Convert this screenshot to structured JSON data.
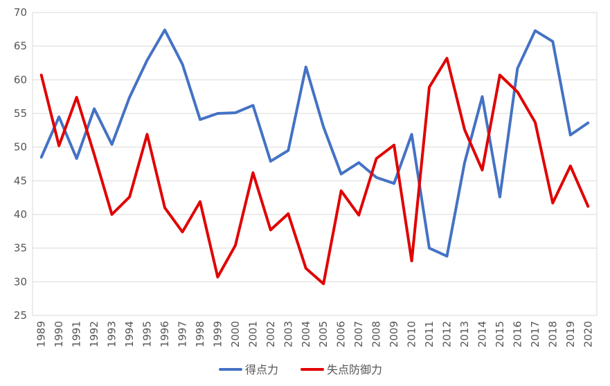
{
  "chart_data": {
    "type": "line",
    "title": "",
    "xlabel": "",
    "ylabel": "",
    "ylim": [
      25,
      70
    ],
    "yticks": [
      25,
      30,
      35,
      40,
      45,
      50,
      55,
      60,
      65,
      70
    ],
    "grid": true,
    "legend_position": "bottom",
    "x": [
      "1989",
      "1990",
      "1991",
      "1992",
      "1993",
      "1994",
      "1995",
      "1996",
      "1997",
      "1998",
      "1999",
      "2000",
      "2001",
      "2002",
      "2003",
      "2004",
      "2005",
      "2006",
      "2007",
      "2008",
      "2009",
      "2010",
      "2011",
      "2012",
      "2013",
      "2014",
      "2015",
      "2016",
      "2017",
      "2018",
      "2019",
      "2020"
    ],
    "series": [
      {
        "name": "得点力",
        "color": "#4472C4",
        "values": [
          48.5,
          54.5,
          48.3,
          55.7,
          50.4,
          57.4,
          62.9,
          67.4,
          62.3,
          54.1,
          55.0,
          55.1,
          56.2,
          47.9,
          49.5,
          61.9,
          53.0,
          46.0,
          47.7,
          45.5,
          44.6,
          51.9,
          35.0,
          33.8,
          47.7,
          57.5,
          42.6,
          61.7,
          67.3,
          65.7,
          51.8,
          53.6
        ]
      },
      {
        "name": "失点防御力",
        "color": "#E00000",
        "values": [
          60.7,
          50.2,
          57.4,
          48.9,
          40.0,
          42.6,
          51.9,
          41.0,
          37.4,
          41.9,
          30.7,
          35.4,
          46.2,
          37.7,
          40.1,
          32.0,
          29.7,
          43.5,
          39.9,
          48.3,
          50.3,
          33.1,
          58.9,
          63.2,
          52.6,
          46.6,
          60.7,
          58.2,
          53.7,
          41.7,
          47.2,
          41.2
        ]
      }
    ]
  }
}
